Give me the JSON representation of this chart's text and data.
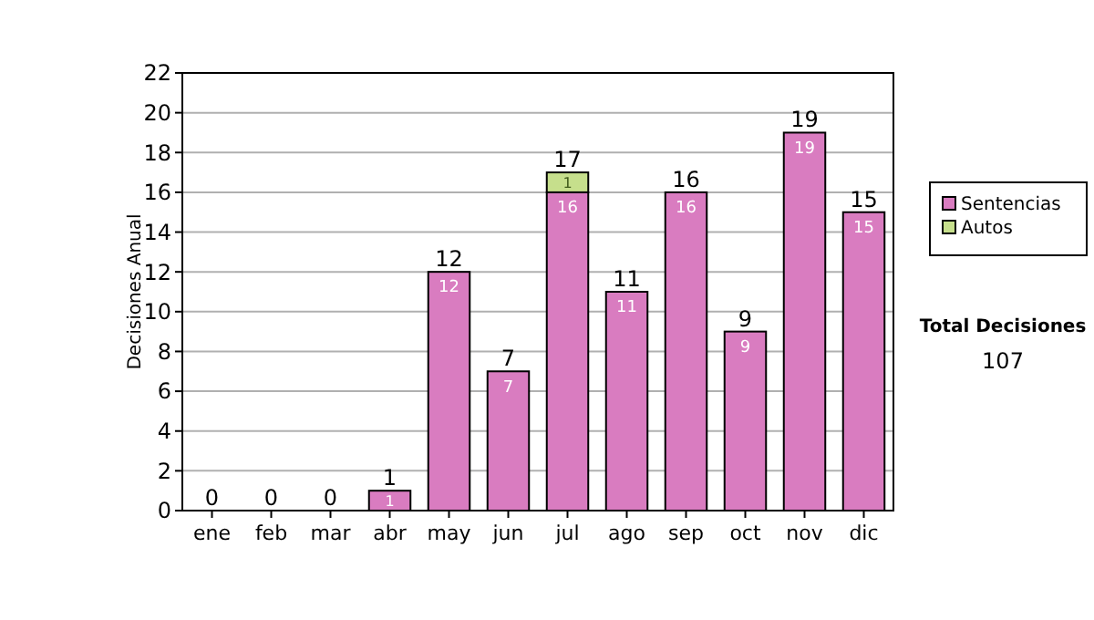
{
  "chart_data": {
    "type": "bar",
    "stacked": true,
    "ylabel": "Decisiones Anual",
    "categories": [
      "ene",
      "feb",
      "mar",
      "abr",
      "may",
      "jun",
      "jul",
      "ago",
      "sep",
      "oct",
      "nov",
      "dic"
    ],
    "series": [
      {
        "name": "Sentencias",
        "color": "#d97cc0",
        "values": [
          0,
          0,
          0,
          1,
          12,
          7,
          16,
          11,
          16,
          9,
          19,
          15
        ],
        "value_labels": [
          null,
          null,
          null,
          "1",
          "12",
          "7",
          "16",
          "11",
          "16",
          "9",
          "19",
          "15"
        ]
      },
      {
        "name": "Autos",
        "color": "#c6df8c",
        "values": [
          0,
          0,
          0,
          0,
          0,
          0,
          1,
          0,
          0,
          0,
          0,
          0
        ],
        "value_labels": [
          null,
          null,
          null,
          null,
          null,
          null,
          "1",
          null,
          null,
          null,
          null,
          null
        ]
      }
    ],
    "totals": [
      "0",
      "0",
      "0",
      "1",
      "12",
      "7",
      "17",
      "11",
      "16",
      "9",
      "19",
      "15"
    ],
    "ylim": [
      0,
      22
    ],
    "yticks": [
      0,
      2,
      4,
      6,
      8,
      10,
      12,
      14,
      16,
      18,
      20,
      22
    ],
    "grid": "y",
    "legend": "right",
    "annotations": [
      "Total Decisiones",
      "107"
    ]
  }
}
